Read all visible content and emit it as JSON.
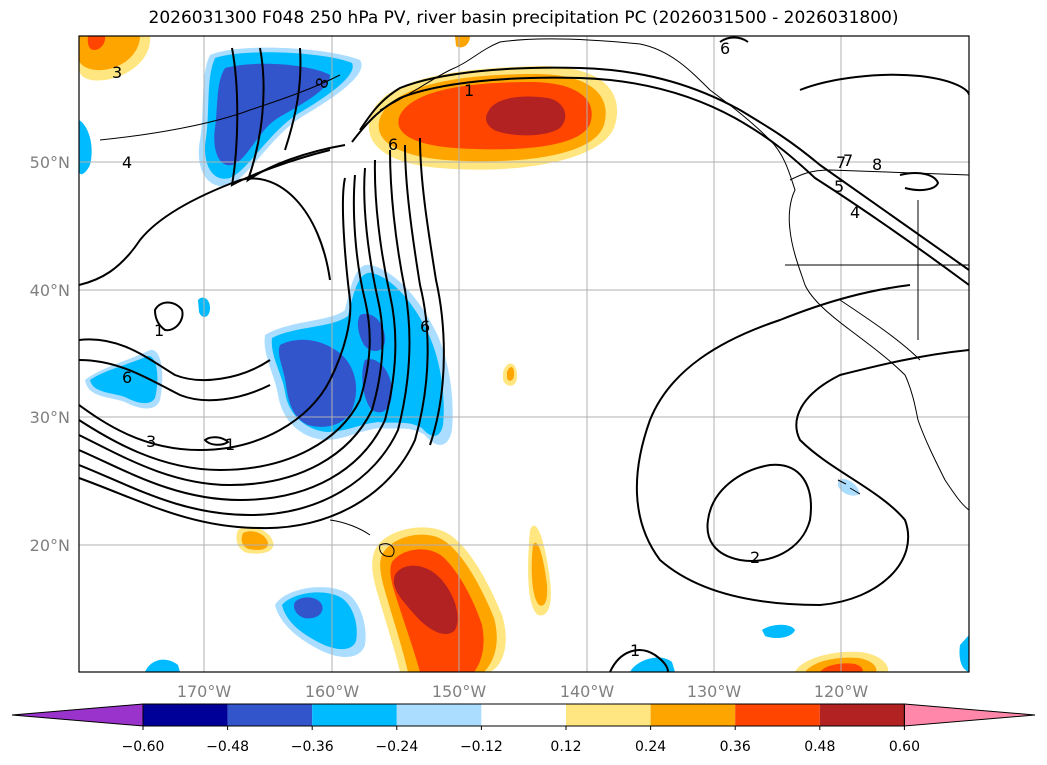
{
  "title": "2026031300 F048 250 hPa PV, river basin precipitation PC (2026031500 - 2026031800)",
  "map": {
    "lon_ticks": [
      "170°W",
      "160°W",
      "150°W",
      "140°W",
      "130°W",
      "120°W"
    ],
    "lat_ticks": [
      "50°N",
      "40°N",
      "30°N",
      "20°N"
    ],
    "contour_labels": [
      "1",
      "8",
      "6",
      "6",
      "4",
      "6",
      "3",
      "1",
      "7",
      "6",
      "1",
      "2",
      "7",
      "8",
      "5",
      "4",
      "3",
      "1"
    ]
  },
  "colorbar": {
    "ticks": [
      "−0.60",
      "−0.48",
      "−0.36",
      "−0.24",
      "−0.12",
      "0.12",
      "0.24",
      "0.36",
      "0.48",
      "0.60"
    ],
    "colors": [
      "#9933cc",
      "#000099",
      "#3355cc",
      "#00bbff",
      "#aaddff",
      "#ffffff",
      "#ffe680",
      "#ffa500",
      "#ff4500",
      "#b22222",
      "#ff88aa"
    ]
  },
  "colors": {
    "neg_light": "#aaddff",
    "neg_mid": "#00bbff",
    "neg_dark": "#3355cc",
    "pos_light": "#ffe680",
    "pos_mid": "#ffa500",
    "pos_high": "#ff4500",
    "pos_max": "#b22222"
  }
}
